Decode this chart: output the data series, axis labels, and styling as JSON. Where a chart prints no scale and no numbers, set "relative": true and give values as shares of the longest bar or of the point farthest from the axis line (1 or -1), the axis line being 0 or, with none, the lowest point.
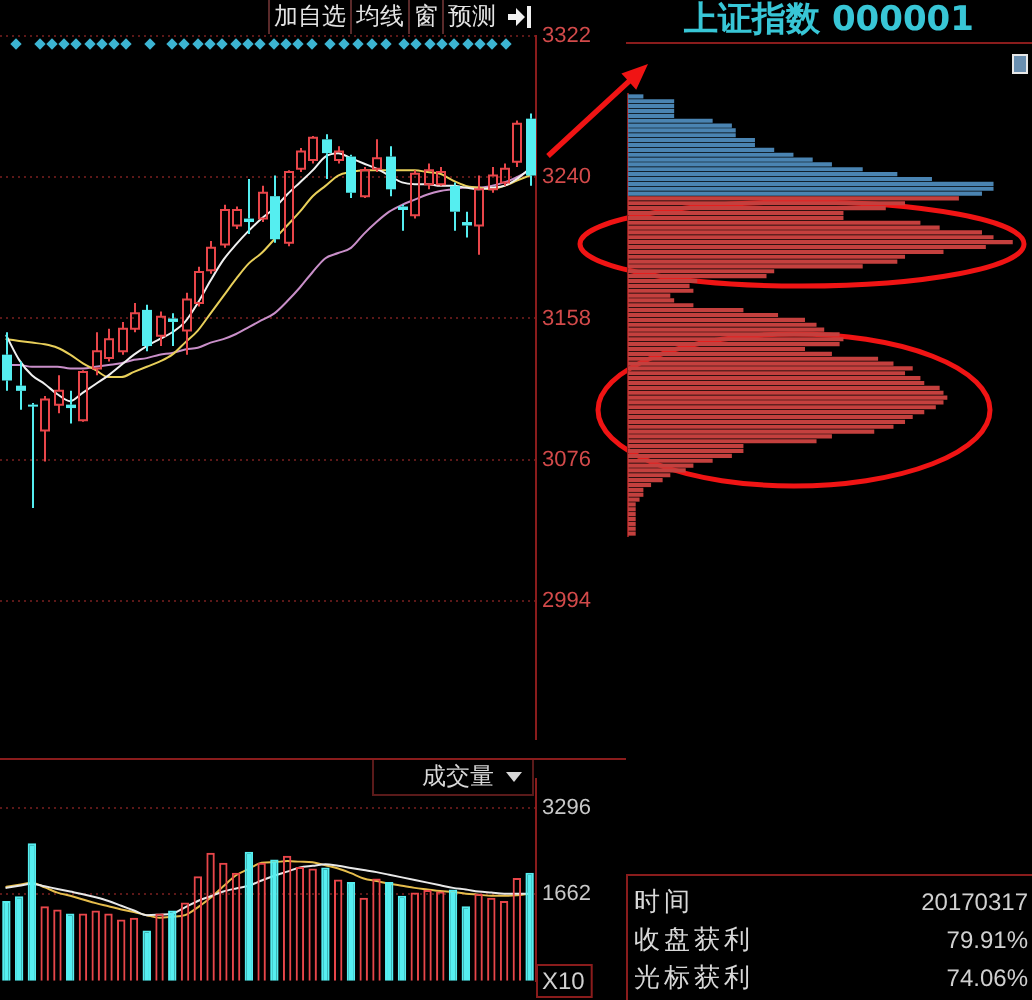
{
  "chart_data": [
    {
      "type": "candlestick",
      "categories": [
        null,
        null,
        null,
        null,
        null,
        null,
        null,
        null,
        null,
        null,
        null,
        null,
        null,
        null,
        null,
        null,
        null,
        null,
        null,
        null,
        null,
        null,
        null,
        null,
        null,
        null,
        null,
        null,
        null,
        null,
        null,
        null,
        null,
        null,
        null,
        null,
        null,
        null,
        null,
        null,
        null,
        null
      ],
      "ohlc": [
        [
          3137,
          3150,
          3116,
          3122
        ],
        [
          3119,
          3133,
          3105,
          3116
        ],
        [
          3108,
          3109,
          3048,
          3107
        ],
        [
          3093,
          3113,
          3075,
          3111
        ],
        [
          3108,
          3125,
          3103,
          3116
        ],
        [
          3108,
          3116,
          3097,
          3106
        ],
        [
          3099,
          3128,
          3098,
          3127
        ],
        [
          3129,
          3150,
          3125,
          3139
        ],
        [
          3135,
          3152,
          3133,
          3146
        ],
        [
          3139,
          3156,
          3137,
          3152
        ],
        [
          3152,
          3167,
          3150,
          3161
        ],
        [
          3163,
          3166,
          3139,
          3142
        ],
        [
          3148,
          3162,
          3142,
          3159
        ],
        [
          3158,
          3161,
          3142,
          3156
        ],
        [
          3151,
          3173,
          3137,
          3169
        ],
        [
          3167,
          3188,
          3165,
          3185
        ],
        [
          3186,
          3203,
          3184,
          3199
        ],
        [
          3201,
          3224,
          3199,
          3221
        ],
        [
          3212,
          3223,
          3210,
          3221
        ],
        [
          3216,
          3239,
          3207,
          3214
        ],
        [
          3216,
          3235,
          3214,
          3231
        ],
        [
          3229,
          3241,
          3202,
          3204
        ],
        [
          3202,
          3244,
          3200,
          3243
        ],
        [
          3245,
          3257,
          3243,
          3255
        ],
        [
          3250,
          3264,
          3248,
          3263
        ],
        [
          3262,
          3265,
          3239,
          3254
        ],
        [
          3250,
          3258,
          3248,
          3255
        ],
        [
          3252,
          3253,
          3228,
          3231
        ],
        [
          3229,
          3246,
          3228,
          3244
        ],
        [
          3245,
          3262,
          3243,
          3251
        ],
        [
          3252,
          3258,
          3229,
          3233
        ],
        [
          3223,
          3224,
          3209,
          3221
        ],
        [
          3218,
          3244,
          3216,
          3242
        ],
        [
          3236,
          3248,
          3233,
          3244
        ],
        [
          3236,
          3246,
          3235,
          3243
        ],
        [
          3235,
          3237,
          3209,
          3220
        ],
        [
          3214,
          3220,
          3205,
          3212
        ],
        [
          3212,
          3241,
          3195,
          3233
        ],
        [
          3233,
          3246,
          3231,
          3241
        ],
        [
          3237,
          3248,
          3235,
          3245
        ],
        [
          3249,
          3273,
          3246,
          3271
        ],
        [
          3274,
          3277,
          3235,
          3241
        ]
      ],
      "colors": [
        "#55eef0",
        "#55eef0",
        "#55eef0",
        "#e8464a",
        "#e8464a",
        "#55eef0",
        "#e8464a",
        "#e8464a",
        "#e8464a",
        "#e8464a",
        "#e8464a",
        "#55eef0",
        "#e8464a",
        "#55eef0",
        "#e8464a",
        "#e8464a",
        "#e8464a",
        "#e8464a",
        "#e8464a",
        "#55eef0",
        "#e8464a",
        "#55eef0",
        "#e8464a",
        "#e8464a",
        "#e8464a",
        "#55eef0",
        "#e8464a",
        "#55eef0",
        "#e8464a",
        "#e8464a",
        "#55eef0",
        "#55eef0",
        "#e8464a",
        "#e8464a",
        "#e8464a",
        "#55eef0",
        "#55eef0",
        "#e8464a",
        "#e8464a",
        "#e8464a",
        "#e8464a",
        "#55eef0"
      ],
      "series": [
        {
          "type": "line",
          "color": "#f0f0f0",
          "values": [
            3148,
            3134,
            3125,
            3120,
            3114,
            3110,
            3115,
            3120,
            3125,
            3131,
            3137,
            3142,
            3146,
            3150,
            3156,
            3167,
            3180,
            3192,
            3201,
            3209,
            3216,
            3222,
            3230,
            3237,
            3244,
            3252,
            3254,
            3251,
            3248,
            3245,
            3241,
            3237,
            3236,
            3236,
            3235,
            3235,
            3234,
            3233,
            3234,
            3235,
            3239,
            3245
          ]
        },
        {
          "type": "line",
          "color": "#e8cf5a",
          "values": [
            3146,
            3145,
            3144,
            3143,
            3141,
            3137,
            3132,
            3128,
            3124,
            3124,
            3127,
            3130,
            3133,
            3137,
            3144,
            3151,
            3161,
            3171,
            3181,
            3190,
            3196,
            3204,
            3212,
            3220,
            3229,
            3235,
            3241,
            3243,
            3244,
            3244,
            3244,
            3244,
            3244,
            3243,
            3242,
            3238,
            3235,
            3234,
            3233,
            3235,
            3238,
            3241
          ]
        },
        {
          "type": "line",
          "color": "#c98fc9",
          "values": [
            3131,
            3131,
            3130,
            3130,
            3130,
            3129,
            3129,
            3130,
            3131,
            3132,
            3134,
            3135,
            3137,
            3138,
            3140,
            3141,
            3144,
            3146,
            3149,
            3153,
            3157,
            3161,
            3168,
            3176,
            3185,
            3193,
            3196,
            3199,
            3207,
            3214,
            3220,
            3224,
            3227,
            3230,
            3232,
            3233,
            3234,
            3234,
            3235,
            3237,
            3240,
            3244
          ]
        }
      ],
      "ylim": [
        2914,
        3322
      ],
      "yticks": [
        2994,
        3076,
        3158,
        3240,
        3322
      ],
      "grid": "y",
      "annotations": [
        "加自选",
        "均线",
        "窗",
        "预测"
      ]
    },
    {
      "type": "bar",
      "categories": [
        null,
        null,
        null,
        null,
        null,
        null,
        null,
        null,
        null,
        null,
        null,
        null,
        null,
        null,
        null,
        null,
        null,
        null,
        null,
        null,
        null,
        null,
        null,
        null,
        null,
        null,
        null,
        null,
        null,
        null,
        null,
        null,
        null,
        null,
        null,
        null,
        null,
        null,
        null,
        null,
        null,
        null
      ],
      "series": [
        {
          "type": "bar",
          "colors": [
            "#55eef0",
            "#55eef0",
            "#55eef0",
            "#e8464a",
            "#e8464a",
            "#55eef0",
            "#e8464a",
            "#e8464a",
            "#e8464a",
            "#e8464a",
            "#e8464a",
            "#55eef0",
            "#e8464a",
            "#55eef0",
            "#e8464a",
            "#e8464a",
            "#e8464a",
            "#e8464a",
            "#e8464a",
            "#55eef0",
            "#e8464a",
            "#55eef0",
            "#e8464a",
            "#e8464a",
            "#e8464a",
            "#55eef0",
            "#e8464a",
            "#55eef0",
            "#e8464a",
            "#e8464a",
            "#55eef0",
            "#55eef0",
            "#e8464a",
            "#e8464a",
            "#e8464a",
            "#55eef0",
            "#55eef0",
            "#e8464a",
            "#e8464a",
            "#e8464a",
            "#e8464a",
            "#55eef0"
          ],
          "values": [
            1520,
            1610,
            2620,
            1420,
            1360,
            1280,
            1280,
            1340,
            1280,
            1170,
            1200,
            960,
            1280,
            1340,
            1490,
            1990,
            2440,
            2250,
            2060,
            2460,
            2250,
            2310,
            2380,
            2170,
            2140,
            2160,
            1930,
            1880,
            1580,
            1950,
            1880,
            1620,
            1680,
            1730,
            1700,
            1740,
            1420,
            1660,
            1580,
            1520,
            1960,
            2060
          ]
        },
        {
          "type": "line",
          "color": "#e8e8e8",
          "values": [
            1770,
            1810,
            1850,
            1800,
            1750,
            1700,
            1650,
            1590,
            1520,
            1430,
            1340,
            1250,
            1260,
            1280,
            1400,
            1520,
            1610,
            1700,
            1760,
            1810,
            1910,
            2000,
            2080,
            2160,
            2190,
            2220,
            2190,
            2150,
            2110,
            2070,
            2020,
            1970,
            1920,
            1870,
            1820,
            1770,
            1740,
            1700,
            1680,
            1660,
            1660,
            1660
          ]
        },
        {
          "type": "line",
          "color": "#e6bd4c",
          "values": [
            1790,
            1830,
            1870,
            1780,
            1680,
            1620,
            1550,
            1480,
            1420,
            1360,
            1310,
            1250,
            1200,
            1220,
            1250,
            1400,
            1580,
            1800,
            2010,
            2130,
            2250,
            2260,
            2280,
            2270,
            2260,
            2200,
            2140,
            2050,
            1950,
            1900,
            1850,
            1810,
            1770,
            1740,
            1710,
            1690,
            1660,
            1640,
            1620,
            1620,
            1630,
            1660
          ]
        }
      ],
      "ylim": [
        0,
        3840
      ],
      "yticks": [
        1662,
        3296
      ],
      "ylabel": "X10",
      "grid": "y",
      "annotations": [
        "成交量"
      ]
    },
    {
      "type": "bar",
      "orientation": "horizontal",
      "relative": true,
      "title": "上证指数 000001",
      "categories": [
        null,
        null,
        null,
        null,
        null,
        null,
        null,
        null,
        null,
        null,
        null,
        null,
        null,
        null,
        null,
        null,
        null,
        null,
        null,
        null,
        null,
        null,
        null,
        null,
        null,
        null,
        null,
        null,
        null,
        null,
        null,
        null,
        null,
        null,
        null,
        null,
        null,
        null,
        null,
        null,
        null,
        null,
        null,
        null,
        null,
        null,
        null,
        null,
        null,
        null,
        null,
        null,
        null,
        null,
        null,
        null,
        null,
        null,
        null,
        null,
        null,
        null,
        null,
        null,
        null,
        null,
        null,
        null,
        null,
        null,
        null,
        null,
        null,
        null,
        null,
        null,
        null,
        null,
        null,
        null,
        null,
        null,
        null,
        null,
        null,
        null,
        null,
        null,
        null,
        null,
        null
      ],
      "values": [
        0.04,
        0.12,
        0.12,
        0.12,
        0.12,
        0.22,
        0.27,
        0.28,
        0.28,
        0.33,
        0.33,
        0.38,
        0.43,
        0.48,
        0.53,
        0.61,
        0.7,
        0.79,
        0.95,
        0.95,
        0.92,
        0.86,
        0.72,
        0.67,
        0.56,
        0.56,
        0.76,
        0.81,
        0.92,
        0.95,
        1,
        0.93,
        0.82,
        0.72,
        0.7,
        0.61,
        0.38,
        0.36,
        0.18,
        0.16,
        0.17,
        0.11,
        0.12,
        0.17,
        0.3,
        0.39,
        0.46,
        0.49,
        0.51,
        0.55,
        0.56,
        0.55,
        0.46,
        0.53,
        0.65,
        0.69,
        0.74,
        0.72,
        0.76,
        0.77,
        0.81,
        0.82,
        0.83,
        0.82,
        0.8,
        0.77,
        0.74,
        0.72,
        0.69,
        0.64,
        0.53,
        0.49,
        0.3,
        0.3,
        0.27,
        0.22,
        0.17,
        0.15,
        0.11,
        0.09,
        0.06,
        0.04,
        0.04,
        0.03,
        0.02,
        0.02,
        0.02,
        0.02,
        0.02,
        0.02,
        0.02
      ],
      "colors": [
        "#4a84b2",
        "#4a84b2",
        "#4a84b2",
        "#4a84b2",
        "#4a84b2",
        "#4a84b2",
        "#4a84b2",
        "#4a84b2",
        "#4a84b2",
        "#4a84b2",
        "#4a84b2",
        "#4a84b2",
        "#4a84b2",
        "#4a84b2",
        "#4a84b2",
        "#4a84b2",
        "#4a84b2",
        "#4a84b2",
        "#4a84b2",
        "#4a84b2",
        "#4a84b2",
        "#c4403e",
        "#c4403e",
        "#c4403e",
        "#c4403e",
        "#c4403e",
        "#c4403e",
        "#c4403e",
        "#c4403e",
        "#c4403e",
        "#c4403e",
        "#c4403e",
        "#c4403e",
        "#c4403e",
        "#c4403e",
        "#c4403e",
        "#c4403e",
        "#c4403e",
        "#c4403e",
        "#c4403e",
        "#c4403e",
        "#c4403e",
        "#c4403e",
        "#c4403e",
        "#c4403e",
        "#c4403e",
        "#c4403e",
        "#c4403e",
        "#c4403e",
        "#c4403e",
        "#c4403e",
        "#c4403e",
        "#c4403e",
        "#c4403e",
        "#c4403e",
        "#c4403e",
        "#c4403e",
        "#c4403e",
        "#c4403e",
        "#c4403e",
        "#c4403e",
        "#c4403e",
        "#c4403e",
        "#c4403e",
        "#c4403e",
        "#c4403e",
        "#c4403e",
        "#c4403e",
        "#c4403e",
        "#c4403e",
        "#c4403e",
        "#c4403e",
        "#c4403e",
        "#c4403e",
        "#c4403e",
        "#c4403e",
        "#c4403e",
        "#c4403e",
        "#c4403e",
        "#c4403e",
        "#c4403e",
        "#c4403e",
        "#c4403e",
        "#c4403e",
        "#c4403e",
        "#c4403e",
        "#c4403e",
        "#c4403e",
        "#c4403e",
        "#c4403e",
        "#c4403e"
      ]
    },
    {
      "type": "other",
      "annotations": [
        "时间",
        "20170317",
        "收盘获利",
        "79.91%",
        "光标获利",
        "74.06%"
      ]
    }
  ]
}
